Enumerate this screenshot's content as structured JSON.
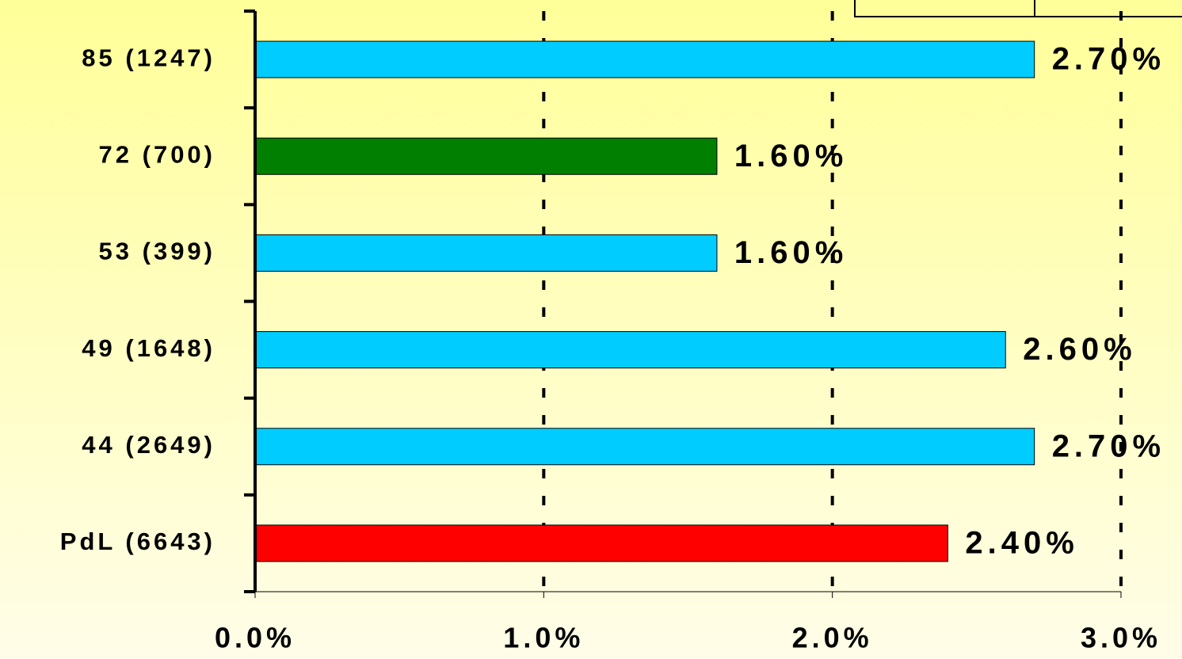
{
  "chart_data": {
    "type": "hbar",
    "categories": [
      "85 (1247)",
      "72 (700)",
      "53 (399)",
      "49 (1648)",
      "44 (2649)",
      "PdL (6643)"
    ],
    "values": [
      2.7,
      1.6,
      1.6,
      2.6,
      2.7,
      2.4
    ],
    "value_labels": [
      "2.70%",
      "1.60%",
      "1.60%",
      "2.60%",
      "2.70%",
      "2.40%"
    ],
    "colors": [
      "#00ccff",
      "#007f00",
      "#00ccff",
      "#00ccff",
      "#00ccff",
      "#ff0000"
    ],
    "xlim": [
      0,
      3
    ],
    "xticks": [
      {
        "value": 0,
        "label": "0.0%"
      },
      {
        "value": 1,
        "label": "1.0%"
      },
      {
        "value": 2,
        "label": "2.0%"
      },
      {
        "value": 3,
        "label": "3.0%"
      }
    ],
    "grid": true
  }
}
